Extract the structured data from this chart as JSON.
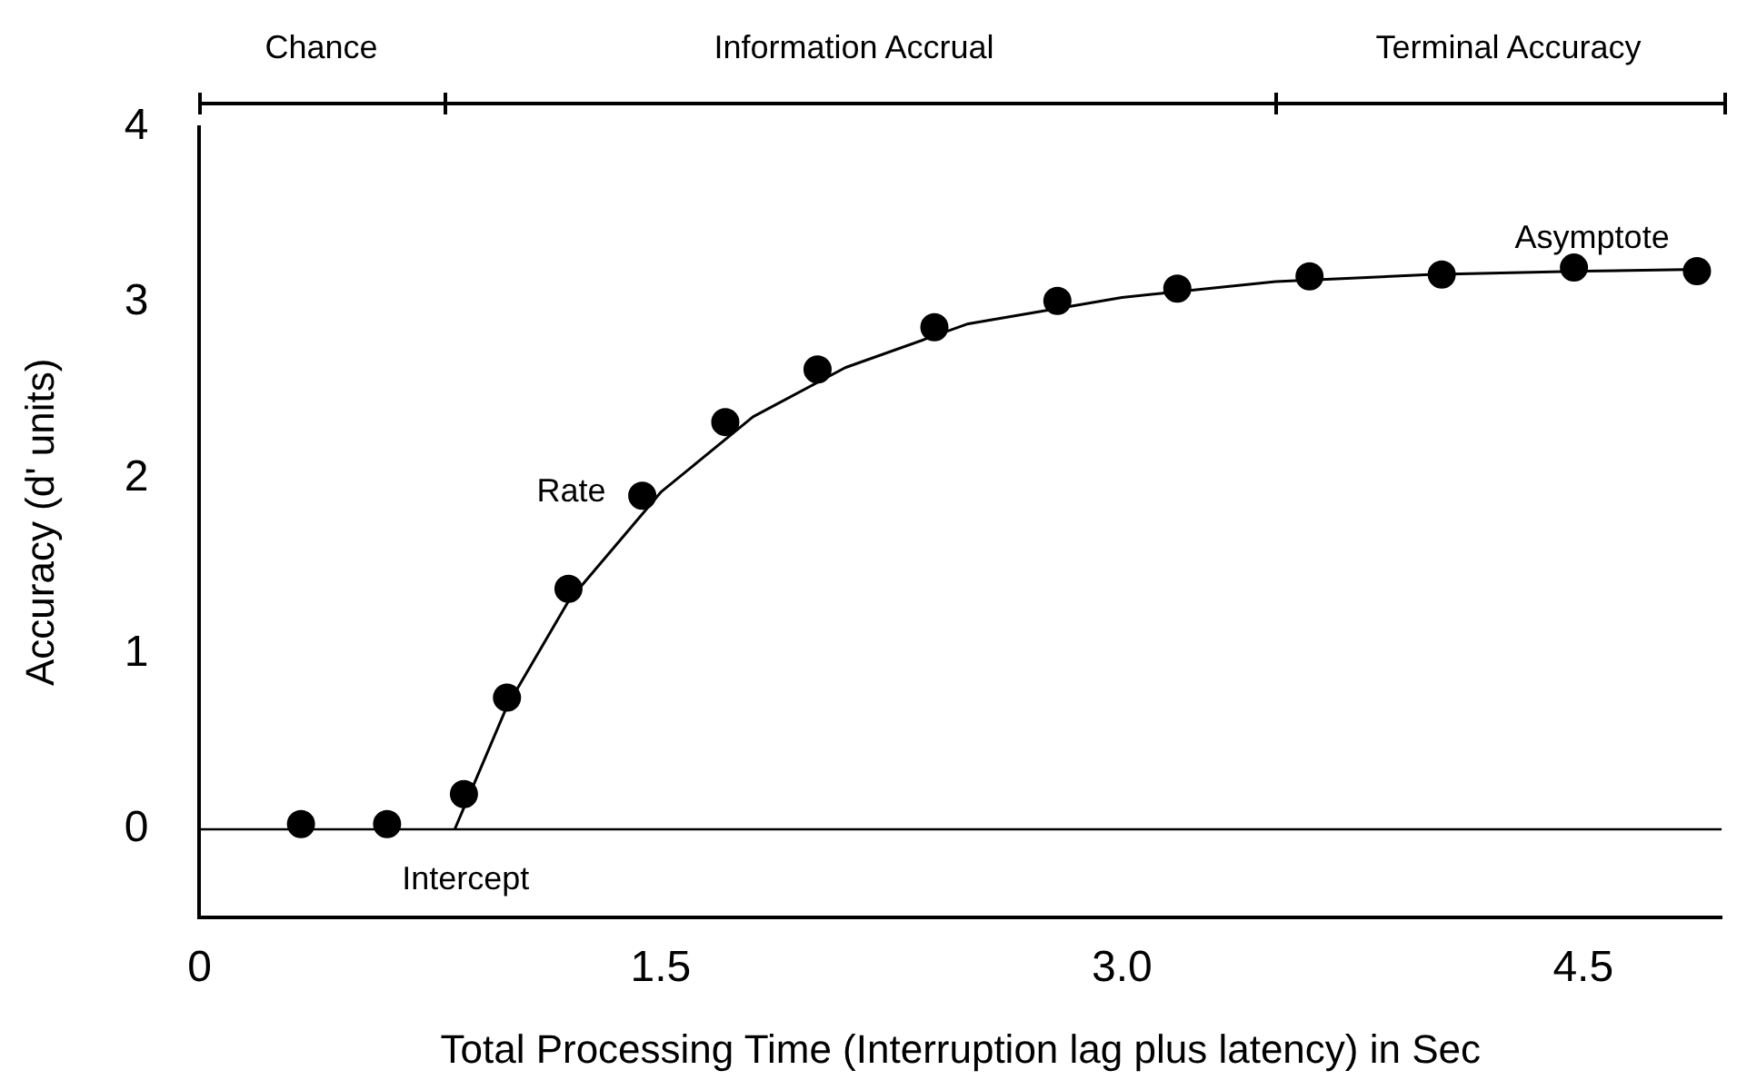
{
  "chart_data": {
    "type": "scatter",
    "xlabel": "Total Processing Time (Interruption lag plus latency) in Sec",
    "ylabel": "Accuracy (d' units)",
    "xlim": [
      0,
      4.95
    ],
    "ylim": [
      -0.5,
      4
    ],
    "xticks": [
      0,
      1.5,
      {
        "value": 3,
        "label": "3.0"
      },
      4.5
    ],
    "yticks": [
      0,
      1,
      2,
      3,
      4
    ],
    "grid": false,
    "legend": false,
    "marker": "circle",
    "series": [
      {
        "type": "scatter",
        "color": "#000000",
        "x": [
          0.33,
          0.61,
          0.86,
          1.0,
          1.2,
          1.44,
          1.71,
          2.01,
          2.39,
          2.79,
          3.18,
          3.61,
          4.04,
          4.47,
          4.87
        ],
        "values": [
          0.03,
          0.03,
          0.2,
          0.75,
          1.37,
          1.9,
          2.32,
          2.62,
          2.86,
          3.01,
          3.08,
          3.15,
          3.16,
          3.2,
          3.18
        ]
      },
      {
        "type": "line",
        "color": "#000000",
        "marker": "none",
        "x": [
          0.83,
          1.0,
          1.2,
          1.5,
          1.8,
          2.1,
          2.5,
          3.0,
          3.5,
          4.0,
          4.5,
          4.88
        ],
        "values": [
          0,
          0.7,
          1.3,
          1.92,
          2.35,
          2.63,
          2.88,
          3.03,
          3.12,
          3.16,
          3.18,
          3.19
        ]
      }
    ],
    "ref_lines": [
      {
        "axis": "y",
        "value": 0,
        "color": "#000000"
      }
    ],
    "annotations": [
      "Chance",
      "Information Accrual",
      "Terminal Accuracy",
      {
        "text": "Rate",
        "x": 1.44,
        "y": 1.9
      },
      {
        "text": "Asymptote",
        "x": 4.47,
        "y": 3.2
      },
      {
        "text": "Intercept",
        "x": 0.83,
        "y": 0
      }
    ]
  }
}
